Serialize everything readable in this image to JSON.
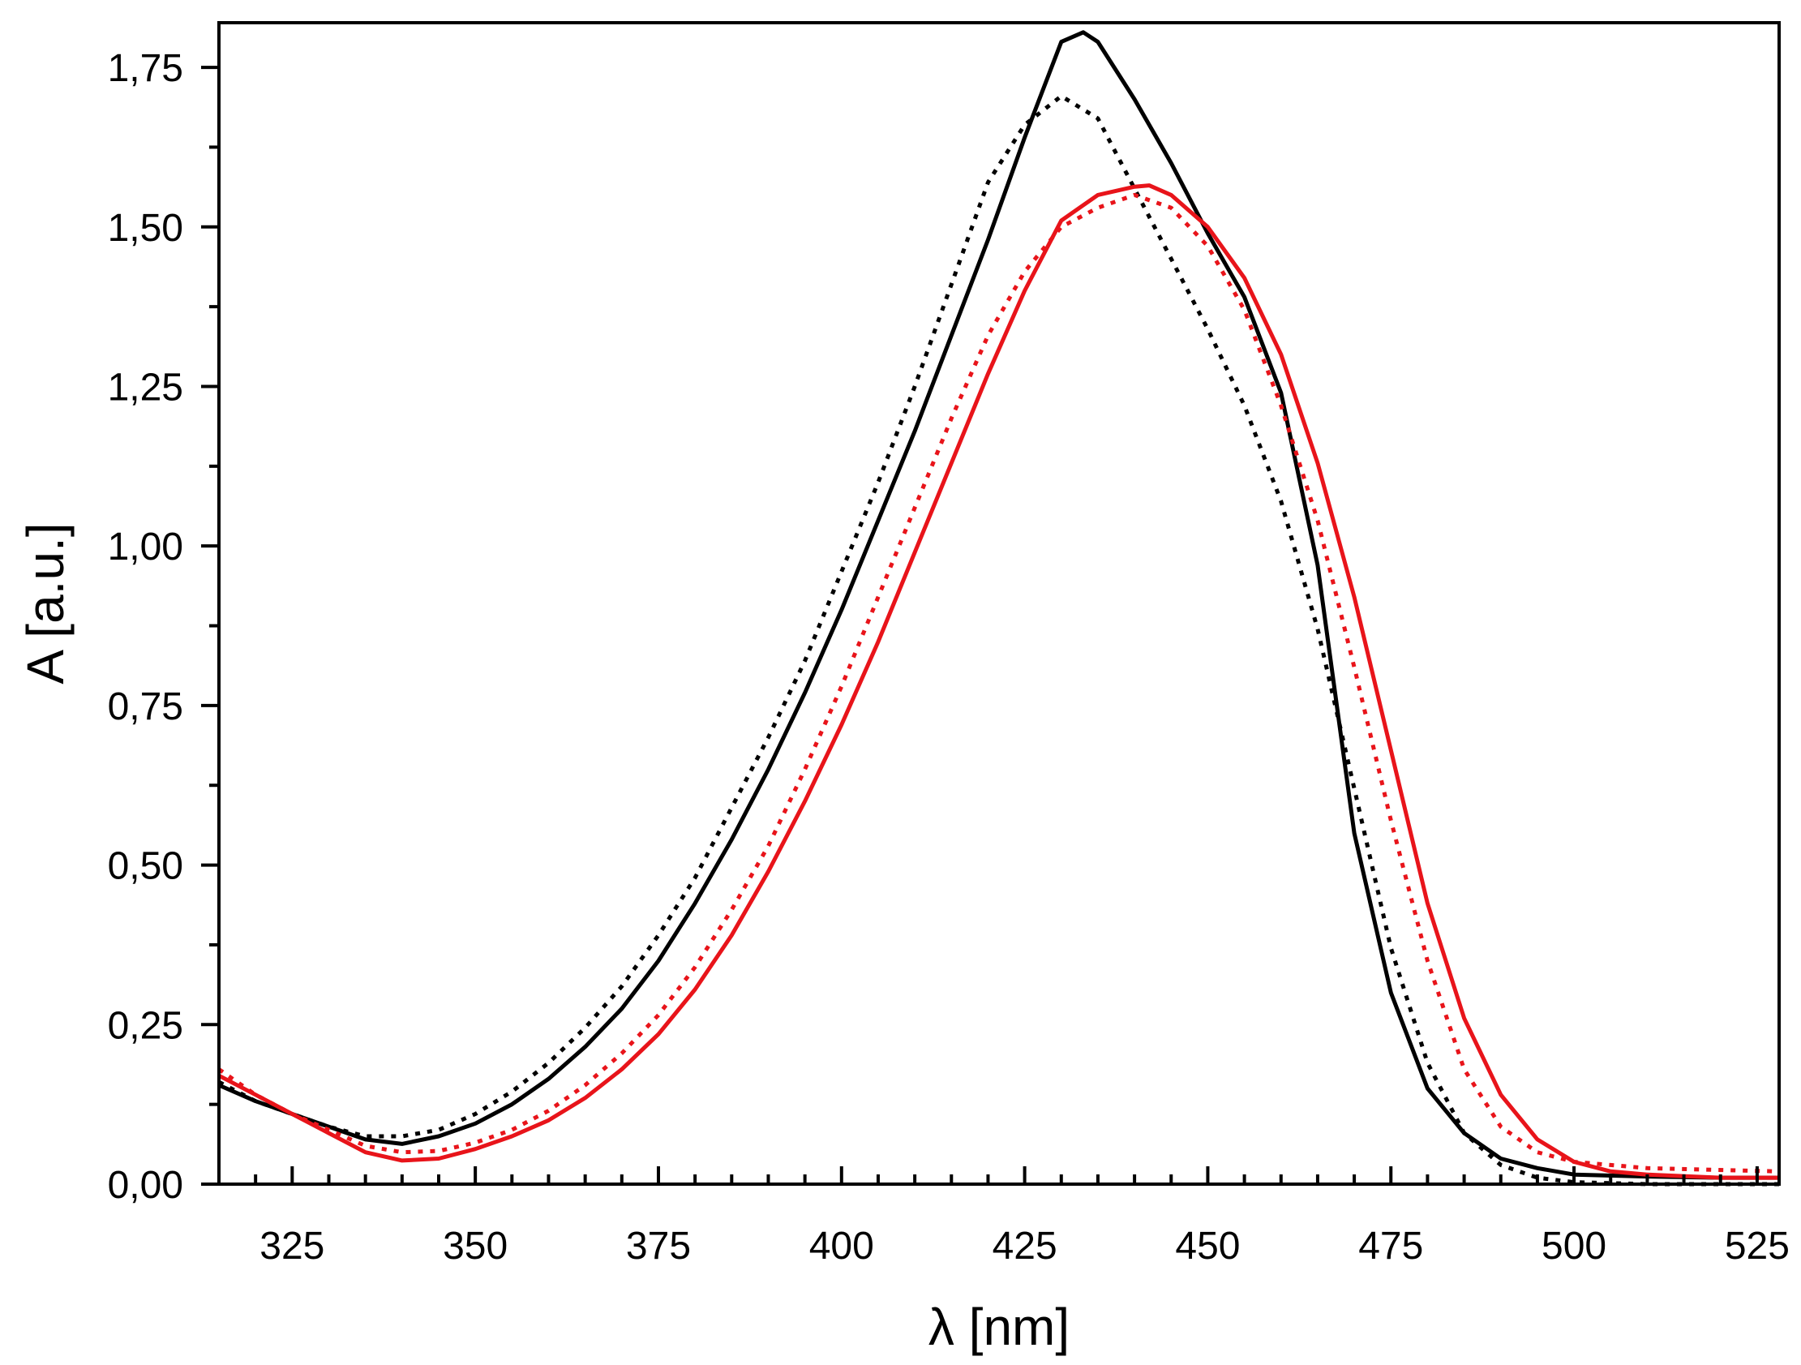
{
  "chart_data": {
    "type": "line",
    "title": "",
    "xlabel": "λ [nm]",
    "ylabel": "A [a.u.]",
    "xlim": [
      315,
      528
    ],
    "ylim": [
      0,
      1.82
    ],
    "x_ticks": [
      325,
      350,
      375,
      400,
      425,
      450,
      475,
      500,
      525
    ],
    "x_tick_labels": [
      "325",
      "350",
      "375",
      "400",
      "425",
      "450",
      "475",
      "500",
      "525"
    ],
    "y_ticks": [
      0,
      0.25,
      0.5,
      0.75,
      1.0,
      1.25,
      1.5,
      1.75
    ],
    "y_tick_labels": [
      "0,00",
      "0,25",
      "0,50",
      "0,75",
      "1,00",
      "1,25",
      "1,50",
      "1,75"
    ],
    "x_minor_step": 5,
    "y_minor_step": 0.125,
    "grid": false,
    "legend": "none",
    "series": [
      {
        "color": "#000000",
        "style": "solid",
        "x": [
          315,
          320,
          325,
          330,
          335,
          340,
          345,
          350,
          355,
          360,
          365,
          370,
          375,
          380,
          385,
          390,
          395,
          400,
          405,
          410,
          415,
          420,
          425,
          430,
          433,
          435,
          440,
          445,
          450,
          455,
          460,
          465,
          470,
          475,
          480,
          485,
          490,
          495,
          500,
          510,
          520,
          528
        ],
        "y": [
          0.155,
          0.13,
          0.11,
          0.09,
          0.07,
          0.063,
          0.075,
          0.095,
          0.125,
          0.165,
          0.215,
          0.275,
          0.35,
          0.44,
          0.54,
          0.65,
          0.77,
          0.9,
          1.04,
          1.18,
          1.33,
          1.48,
          1.64,
          1.79,
          1.805,
          1.79,
          1.7,
          1.6,
          1.49,
          1.39,
          1.24,
          0.97,
          0.55,
          0.3,
          0.15,
          0.08,
          0.04,
          0.025,
          0.015,
          0.012,
          0.01,
          0.01
        ]
      },
      {
        "color": "#000000",
        "style": "dotted",
        "x": [
          315,
          320,
          325,
          330,
          335,
          340,
          345,
          350,
          355,
          360,
          365,
          370,
          375,
          380,
          385,
          390,
          395,
          400,
          405,
          410,
          415,
          420,
          425,
          430,
          435,
          440,
          445,
          450,
          455,
          460,
          465,
          470,
          475,
          480,
          485,
          490,
          495,
          500,
          510,
          528
        ],
        "y": [
          0.16,
          0.13,
          0.11,
          0.09,
          0.075,
          0.075,
          0.085,
          0.11,
          0.145,
          0.19,
          0.245,
          0.31,
          0.39,
          0.48,
          0.59,
          0.7,
          0.82,
          0.96,
          1.1,
          1.25,
          1.41,
          1.57,
          1.66,
          1.705,
          1.67,
          1.56,
          1.45,
          1.34,
          1.22,
          1.07,
          0.87,
          0.62,
          0.37,
          0.19,
          0.08,
          0.03,
          0.01,
          0.003,
          0.0,
          0.0
        ]
      },
      {
        "color": "#e8141a",
        "style": "solid",
        "x": [
          315,
          320,
          325,
          330,
          335,
          340,
          345,
          350,
          355,
          360,
          365,
          370,
          375,
          380,
          385,
          390,
          395,
          400,
          405,
          410,
          415,
          420,
          425,
          430,
          435,
          440,
          442,
          445,
          450,
          455,
          460,
          465,
          470,
          475,
          480,
          485,
          490,
          495,
          500,
          505,
          510,
          520,
          528
        ],
        "y": [
          0.17,
          0.14,
          0.11,
          0.08,
          0.05,
          0.037,
          0.04,
          0.055,
          0.075,
          0.1,
          0.135,
          0.18,
          0.235,
          0.305,
          0.39,
          0.49,
          0.6,
          0.72,
          0.85,
          0.99,
          1.13,
          1.27,
          1.4,
          1.51,
          1.55,
          1.563,
          1.565,
          1.55,
          1.5,
          1.42,
          1.3,
          1.13,
          0.92,
          0.68,
          0.44,
          0.26,
          0.14,
          0.07,
          0.035,
          0.02,
          0.015,
          0.01,
          0.01
        ]
      },
      {
        "color": "#e8141a",
        "style": "dotted",
        "x": [
          315,
          320,
          325,
          330,
          335,
          340,
          345,
          350,
          355,
          360,
          365,
          370,
          375,
          380,
          385,
          390,
          395,
          400,
          405,
          410,
          415,
          420,
          425,
          430,
          435,
          440,
          445,
          450,
          455,
          460,
          465,
          470,
          475,
          480,
          485,
          490,
          495,
          500,
          510,
          528
        ],
        "y": [
          0.18,
          0.14,
          0.11,
          0.085,
          0.06,
          0.05,
          0.052,
          0.065,
          0.085,
          0.115,
          0.155,
          0.205,
          0.265,
          0.34,
          0.43,
          0.53,
          0.65,
          0.78,
          0.92,
          1.06,
          1.2,
          1.33,
          1.43,
          1.5,
          1.53,
          1.55,
          1.53,
          1.47,
          1.37,
          1.22,
          1.04,
          0.81,
          0.57,
          0.35,
          0.18,
          0.09,
          0.05,
          0.035,
          0.025,
          0.02
        ]
      }
    ]
  }
}
